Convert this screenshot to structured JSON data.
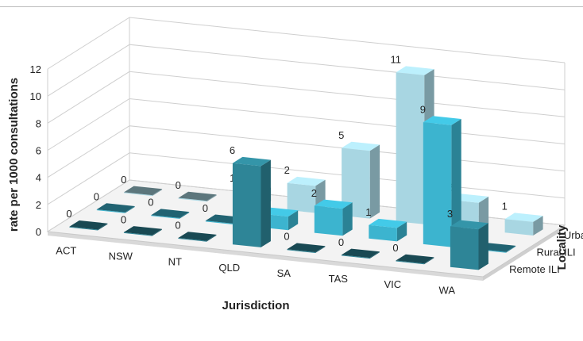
{
  "chart_data": {
    "type": "bar",
    "subtype": "3d-clustered-column",
    "title": "",
    "xlabel": "Jurisdiction",
    "ylabel": "rate per 1000 consultations",
    "zlabel": "Locality",
    "ylim": [
      0,
      12
    ],
    "yticks": [
      0,
      2,
      4,
      6,
      8,
      10,
      12
    ],
    "grid": true,
    "categories": [
      "ACT",
      "NSW",
      "NT",
      "QLD",
      "SA",
      "TAS",
      "VIC",
      "WA"
    ],
    "series": [
      {
        "name": "Remote ILI",
        "color": "#2e8597",
        "values": [
          0,
          0,
          0,
          6,
          0,
          0,
          0,
          3
        ]
      },
      {
        "name": "Rural ILI",
        "color": "#3cb4cf",
        "values": [
          0,
          0,
          0,
          1,
          2,
          1,
          9,
          0
        ]
      },
      {
        "name": "Urban ILI",
        "color": "#a8d6e2",
        "values": [
          0,
          0,
          1,
          2,
          5,
          11,
          2,
          1
        ]
      }
    ]
  }
}
